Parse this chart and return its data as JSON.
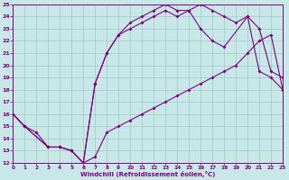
{
  "xlabel": "Windchill (Refroidissement éolien,°C)",
  "bg_color": "#c8e8e8",
  "line_color": "#800080",
  "grid_color": "#a0c8c8",
  "xlim": [
    0,
    23
  ],
  "ylim": [
    12,
    25
  ],
  "xticks": [
    0,
    1,
    2,
    3,
    4,
    5,
    6,
    7,
    8,
    9,
    10,
    11,
    12,
    13,
    14,
    15,
    16,
    17,
    18,
    19,
    20,
    21,
    22,
    23
  ],
  "yticks": [
    12,
    13,
    14,
    15,
    16,
    17,
    18,
    19,
    20,
    21,
    22,
    23,
    24,
    25
  ],
  "line1_x": [
    0,
    1,
    2,
    3,
    4,
    5,
    6,
    7,
    8,
    9,
    10,
    11,
    12,
    13,
    14,
    15,
    16,
    17,
    18,
    19,
    20,
    21,
    22,
    23
  ],
  "line1_y": [
    16,
    15,
    14.5,
    13.3,
    13.3,
    13.0,
    12.0,
    12.5,
    14.5,
    15.0,
    15.5,
    16.0,
    16.5,
    17.0,
    17.5,
    18.0,
    18.5,
    19.0,
    19.5,
    20.0,
    21.0,
    22.0,
    22.5,
    18.0
  ],
  "line2_x": [
    0,
    1,
    3,
    4,
    5,
    6,
    7,
    8,
    9,
    10,
    11,
    12,
    13,
    14,
    15,
    16,
    17,
    18,
    19,
    20,
    21,
    22,
    23
  ],
  "line2_y": [
    16,
    15,
    13.3,
    13.3,
    13.0,
    12.0,
    18.5,
    21.0,
    22.5,
    23.5,
    24.0,
    24.5,
    25.0,
    24.5,
    24.5,
    25.0,
    24.5,
    24.0,
    23.5,
    24.0,
    23.0,
    19.5,
    19.0
  ],
  "line3_x": [
    0,
    1,
    3,
    4,
    5,
    6,
    7,
    8,
    9,
    10,
    11,
    12,
    13,
    14,
    15,
    16,
    17,
    18,
    20,
    21,
    22,
    23
  ],
  "line3_y": [
    16,
    15,
    13.3,
    13.3,
    13.0,
    12.0,
    18.5,
    21.0,
    22.5,
    23.0,
    23.5,
    24.0,
    24.5,
    24.0,
    24.5,
    23.0,
    22.0,
    21.5,
    24.0,
    19.5,
    19.0,
    18.0
  ]
}
